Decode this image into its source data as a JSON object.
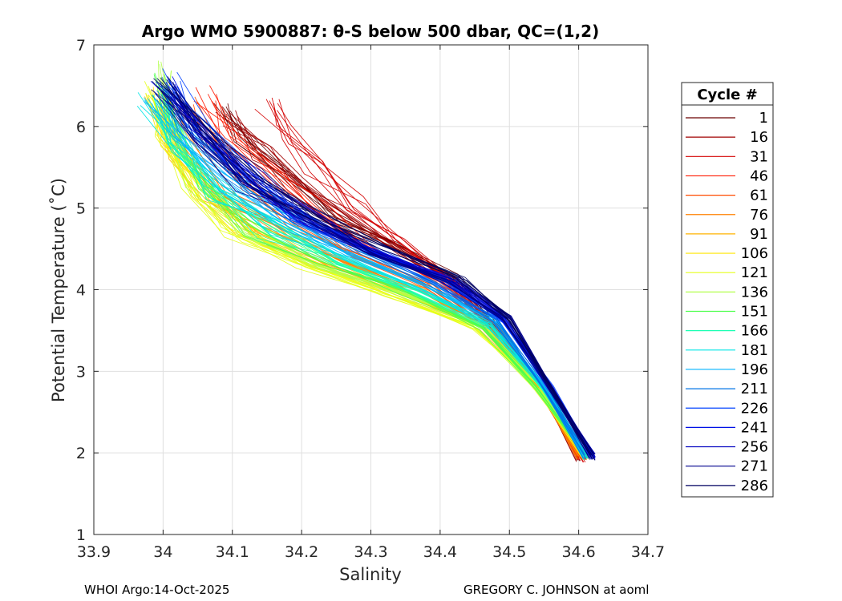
{
  "chart_data": {
    "type": "line",
    "title": "Argo WMO 5900887: θ-S below 500 dbar,  QC=(1,2)",
    "xlabel": "Salinity",
    "ylabel": "Potential Temperature (˚C)",
    "xlim": [
      33.9,
      34.7
    ],
    "ylim": [
      1,
      7
    ],
    "xticks": [
      "33.9",
      "34",
      "34.1",
      "34.2",
      "34.3",
      "34.4",
      "34.5",
      "34.6",
      "34.7"
    ],
    "yticks": [
      "1",
      "2",
      "3",
      "4",
      "5",
      "6",
      "7"
    ],
    "grid": true,
    "legend_title": "Cycle #",
    "legend_position": "outside-right",
    "series": [
      {
        "name": "1",
        "color": "#6a0000",
        "x": [
          34.08,
          34.12,
          34.18,
          34.25,
          34.33,
          34.42,
          34.5,
          34.55,
          34.6
        ],
        "y": [
          6.2,
          5.8,
          5.35,
          4.9,
          4.55,
          4.15,
          3.35,
          2.75,
          1.92
        ]
      },
      {
        "name": "16",
        "color": "#a00000",
        "x": [
          34.1,
          34.14,
          34.2,
          34.26,
          34.34,
          34.42,
          34.5,
          34.55,
          34.6
        ],
        "y": [
          6.1,
          5.7,
          5.3,
          4.9,
          4.45,
          4.05,
          3.35,
          2.7,
          1.92
        ]
      },
      {
        "name": "31",
        "color": "#d40000",
        "x": [
          34.15,
          34.18,
          34.22,
          34.28,
          34.34,
          34.42,
          34.49,
          34.55,
          34.61
        ],
        "y": [
          6.3,
          5.9,
          5.5,
          5.05,
          4.6,
          4.1,
          3.4,
          2.7,
          1.92
        ]
      },
      {
        "name": "46",
        "color": "#ff1a00",
        "x": [
          34.06,
          34.1,
          34.16,
          34.22,
          34.3,
          34.4,
          34.49,
          34.55,
          34.6
        ],
        "y": [
          6.4,
          5.9,
          5.4,
          4.95,
          4.5,
          4.1,
          3.45,
          2.75,
          1.95
        ]
      },
      {
        "name": "61",
        "color": "#ff4a00",
        "x": [
          34.03,
          34.07,
          34.12,
          34.2,
          34.28,
          34.38,
          34.48,
          34.55,
          34.6
        ],
        "y": [
          6.3,
          5.8,
          5.25,
          4.8,
          4.4,
          4.05,
          3.45,
          2.75,
          1.95
        ]
      },
      {
        "name": "76",
        "color": "#ff8000",
        "x": [
          34.0,
          34.04,
          34.1,
          34.18,
          34.27,
          34.37,
          34.47,
          34.54,
          34.6
        ],
        "y": [
          6.2,
          5.65,
          5.1,
          4.7,
          4.35,
          4.0,
          3.5,
          2.8,
          1.95
        ]
      },
      {
        "name": "91",
        "color": "#ffb300",
        "x": [
          33.99,
          34.02,
          34.07,
          34.14,
          34.24,
          34.35,
          34.46,
          34.54,
          34.61
        ],
        "y": [
          6.3,
          5.7,
          5.1,
          4.65,
          4.3,
          3.98,
          3.55,
          2.8,
          1.95
        ]
      },
      {
        "name": "106",
        "color": "#ffe600",
        "x": [
          33.99,
          34.01,
          34.05,
          34.12,
          34.22,
          34.34,
          34.46,
          34.54,
          34.61
        ],
        "y": [
          6.4,
          5.8,
          5.2,
          4.7,
          4.3,
          3.95,
          3.55,
          2.8,
          1.95
        ]
      },
      {
        "name": "121",
        "color": "#e6ff1a",
        "x": [
          33.99,
          34.0,
          34.04,
          34.1,
          34.2,
          34.33,
          34.45,
          34.54,
          34.61
        ],
        "y": [
          6.5,
          5.9,
          5.2,
          4.7,
          4.3,
          3.95,
          3.55,
          2.8,
          1.95
        ]
      },
      {
        "name": "136",
        "color": "#b3ff4d",
        "x": [
          34.0,
          34.01,
          34.05,
          34.12,
          34.22,
          34.34,
          34.46,
          34.54,
          34.61
        ],
        "y": [
          6.7,
          6.0,
          5.3,
          4.75,
          4.3,
          3.95,
          3.55,
          2.8,
          1.95
        ]
      },
      {
        "name": "151",
        "color": "#4dff4d",
        "x": [
          34.0,
          34.02,
          34.06,
          34.13,
          34.23,
          34.35,
          34.46,
          34.54,
          34.61
        ],
        "y": [
          6.6,
          5.9,
          5.3,
          4.75,
          4.35,
          3.98,
          3.55,
          2.8,
          1.95
        ]
      },
      {
        "name": "166",
        "color": "#1affb3",
        "x": [
          33.99,
          34.02,
          34.07,
          34.15,
          34.25,
          34.36,
          34.47,
          34.55,
          34.61
        ],
        "y": [
          6.4,
          5.8,
          5.25,
          4.75,
          4.35,
          4.0,
          3.55,
          2.8,
          1.95
        ]
      },
      {
        "name": "181",
        "color": "#00e6e6",
        "x": [
          33.98,
          34.02,
          34.08,
          34.16,
          34.26,
          34.37,
          34.47,
          34.55,
          34.61
        ],
        "y": [
          6.3,
          5.7,
          5.2,
          4.78,
          4.4,
          4.03,
          3.58,
          2.8,
          1.95
        ]
      },
      {
        "name": "196",
        "color": "#00b3ff",
        "x": [
          33.99,
          34.03,
          34.09,
          34.17,
          34.27,
          34.38,
          34.48,
          34.55,
          34.61
        ],
        "y": [
          6.4,
          5.85,
          5.3,
          4.85,
          4.45,
          4.06,
          3.6,
          2.8,
          1.95
        ]
      },
      {
        "name": "211",
        "color": "#0073e6",
        "x": [
          34.0,
          34.04,
          34.1,
          34.18,
          34.28,
          34.39,
          34.48,
          34.55,
          34.61
        ],
        "y": [
          6.5,
          5.95,
          5.4,
          4.92,
          4.5,
          4.1,
          3.62,
          2.8,
          1.95
        ]
      },
      {
        "name": "226",
        "color": "#0040ff",
        "x": [
          34.01,
          34.05,
          34.11,
          34.19,
          34.29,
          34.4,
          34.49,
          34.56,
          34.62
        ],
        "y": [
          6.6,
          6.05,
          5.45,
          4.95,
          4.52,
          4.12,
          3.62,
          2.8,
          1.95
        ]
      },
      {
        "name": "241",
        "color": "#0010e6",
        "x": [
          34.0,
          34.05,
          34.12,
          34.2,
          34.3,
          34.41,
          34.49,
          34.56,
          34.62
        ],
        "y": [
          6.5,
          5.95,
          5.38,
          4.9,
          4.48,
          4.12,
          3.65,
          2.8,
          1.95
        ]
      },
      {
        "name": "256",
        "color": "#0000c0",
        "x": [
          34.0,
          34.06,
          34.13,
          34.21,
          34.31,
          34.42,
          34.5,
          34.56,
          34.62
        ],
        "y": [
          6.45,
          5.9,
          5.32,
          4.85,
          4.45,
          4.1,
          3.65,
          2.8,
          1.95
        ]
      },
      {
        "name": "271",
        "color": "#00008c",
        "x": [
          34.0,
          34.05,
          34.12,
          34.2,
          34.3,
          34.41,
          34.49,
          34.56,
          34.62
        ],
        "y": [
          6.4,
          5.85,
          5.3,
          4.85,
          4.45,
          4.1,
          3.65,
          2.8,
          1.95
        ]
      },
      {
        "name": "286",
        "color": "#000060",
        "x": [
          34.0,
          34.06,
          34.13,
          34.22,
          34.32,
          34.43,
          34.5,
          34.56,
          34.62
        ],
        "y": [
          6.5,
          5.95,
          5.4,
          4.92,
          4.5,
          4.15,
          3.65,
          2.8,
          1.95
        ]
      }
    ]
  },
  "footer": {
    "left": "WHOI Argo:14-Oct-2025",
    "right": "GREGORY C. JOHNSON at aoml"
  }
}
